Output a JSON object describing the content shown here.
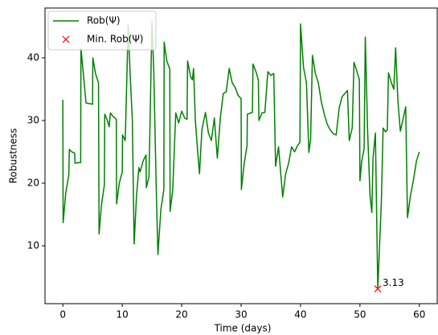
{
  "chart_data": {
    "type": "line",
    "xlabel": "Time (days)",
    "ylabel": "Robustness",
    "x": [
      0,
      0.05,
      0.5,
      1,
      1.1,
      1.5,
      2,
      2.05,
      3,
      3.05,
      3.5,
      3.9,
      5,
      5.05,
      5.5,
      6,
      6.1,
      6.5,
      7,
      7.05,
      7.5,
      7.8,
      8,
      8.5,
      9,
      9.05,
      9.5,
      10,
      10.05,
      10.5,
      11,
      11.3,
      11.7,
      12,
      12.4,
      12.8,
      13,
      13.5,
      14,
      14.05,
      14.5,
      15,
      15.3,
      15.7,
      16,
      16.5,
      17,
      17.05,
      17.5,
      18,
      18.05,
      18.5,
      19,
      19.5,
      20,
      20.5,
      20.9,
      21,
      21.5,
      21.8,
      22,
      22.3,
      22.7,
      23,
      23.4,
      24,
      24.5,
      25,
      25.5,
      26,
      26.5,
      27,
      27.5,
      28,
      28.5,
      29,
      29.5,
      30,
      30.05,
      30.5,
      31,
      31.05,
      31.9,
      32,
      32.5,
      32.9,
      33,
      33.5,
      34,
      34.5,
      35,
      35.5,
      35.8,
      36.3,
      37,
      37.5,
      38,
      38.5,
      39,
      39.5,
      39.9,
      40,
      40.5,
      41,
      41.4,
      41.7,
      42,
      42.5,
      43,
      43.5,
      44,
      44.5,
      45,
      45.5,
      46,
      46.5,
      47,
      47.9,
      48.2,
      48.7,
      49,
      49.5,
      49.9,
      50,
      50.3,
      50.7,
      50.9,
      51.3,
      51.7,
      52,
      52.2,
      52.6,
      53,
      53.3,
      53.6,
      53.9,
      54.3,
      54.6,
      54.8,
      55.3,
      55.7,
      56,
      56.4,
      56.8,
      57.2,
      57.7,
      58,
      58.5,
      59,
      59.5,
      60
    ],
    "series": [
      {
        "name": "Rob(Ψ)",
        "color": "#008000",
        "values": [
          33.3,
          13.7,
          18.5,
          21.3,
          25.4,
          25,
          24.8,
          23.2,
          23.3,
          41.5,
          37,
          32.8,
          32.6,
          40,
          37.5,
          36,
          11.9,
          16.5,
          19.8,
          31,
          30,
          29,
          31.2,
          30.6,
          30.2,
          16.7,
          20,
          21.8,
          27.7,
          26.8,
          45.2,
          38,
          30,
          10.3,
          18,
          22.5,
          21.8,
          23.5,
          24.5,
          19.3,
          21,
          45.8,
          38,
          20,
          8.6,
          15.8,
          19,
          42.5,
          39.5,
          38.2,
          15.5,
          19,
          31.2,
          29.6,
          31.5,
          30.4,
          30.2,
          39.5,
          37,
          36.5,
          38.3,
          30,
          25,
          21.5,
          28.5,
          31.3,
          28,
          26.8,
          30.4,
          24,
          30.4,
          34.3,
          34.6,
          38.3,
          36,
          35.3,
          34,
          33.5,
          19,
          23,
          26,
          31,
          31.3,
          39,
          37.8,
          36.5,
          30,
          31.2,
          31.3,
          37.8,
          37.2,
          37.5,
          22.7,
          25.8,
          17.8,
          21.5,
          23.2,
          25.8,
          25,
          26,
          26.5,
          45.4,
          38.5,
          36,
          24.9,
          27,
          40.4,
          37.5,
          36,
          33,
          31,
          29.4,
          28.5,
          27.9,
          27.7,
          32,
          33.8,
          34.8,
          26.8,
          28.8,
          39.3,
          37.8,
          36.5,
          20.4,
          23.5,
          25.5,
          43.3,
          28,
          18,
          15.3,
          24,
          28,
          3.13,
          10,
          17,
          28.8,
          28.2,
          28.5,
          37.6,
          36,
          35,
          41.6,
          33,
          28.3,
          30,
          32.2,
          14.5,
          18,
          20.5,
          23.5,
          25
        ]
      },
      {
        "name": "Min. Rob(Ψ)",
        "color": "#ff0000",
        "type": "scatter",
        "marker": "x",
        "annotate": true,
        "x": [
          53
        ],
        "values": [
          3.13
        ]
      }
    ],
    "xlim": [
      -3,
      63
    ],
    "ylim": [
      0.77,
      47.95
    ],
    "xticks": [
      0,
      10,
      20,
      30,
      40,
      50,
      60
    ],
    "yticks": [
      10,
      20,
      30,
      40
    ],
    "grid": false,
    "legend": "upper left"
  }
}
